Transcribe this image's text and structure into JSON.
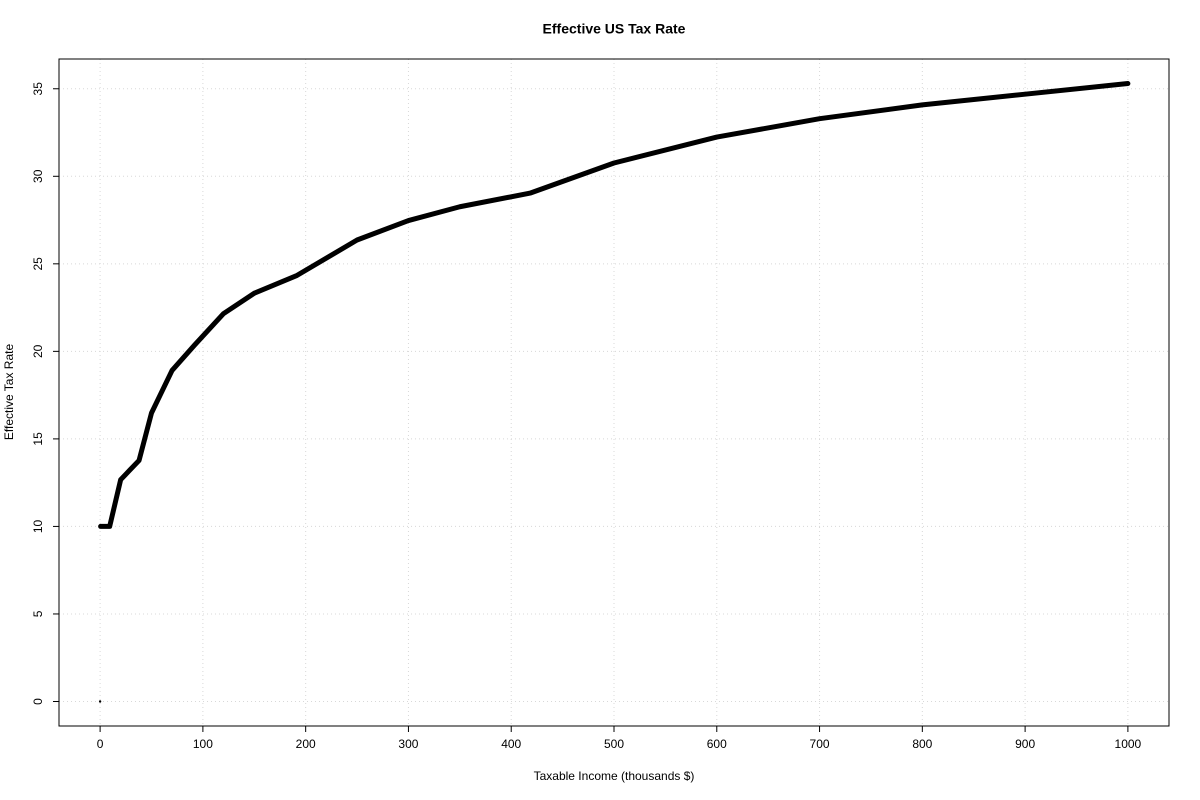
{
  "chart_data": {
    "type": "line",
    "title": "Effective US Tax Rate",
    "x_label": "Taxable Income (thousands $)",
    "y_label": "Effective Tax Rate",
    "series": [
      {
        "marker": "point",
        "color": "#000000",
        "x": [
          0
        ],
        "values": [
          0
        ]
      },
      {
        "marker": "line",
        "color": "#000000",
        "x": [
          0.5,
          9.3,
          20,
          37.9,
          50,
          70,
          91.9,
          120,
          150,
          191.6,
          250,
          300,
          350,
          416.7,
          418.4,
          500,
          600,
          700,
          800,
          900,
          1000
        ],
        "values": [
          10,
          10,
          12.67,
          13.77,
          16.48,
          18.91,
          20.36,
          22.15,
          23.32,
          24.34,
          26.36,
          27.47,
          28.26,
          29.02,
          29.04,
          30.76,
          32.24,
          33.29,
          34.08,
          34.69,
          35.3
        ]
      }
    ],
    "xlim": [
      -40,
      1040
    ],
    "ylim": [
      -1.4,
      36.7
    ],
    "xticks": [
      0,
      100,
      200,
      300,
      400,
      500,
      600,
      700,
      800,
      900,
      1000
    ],
    "yticks": [
      0,
      5,
      10,
      15,
      20,
      25,
      30,
      35
    ],
    "grid": true
  }
}
